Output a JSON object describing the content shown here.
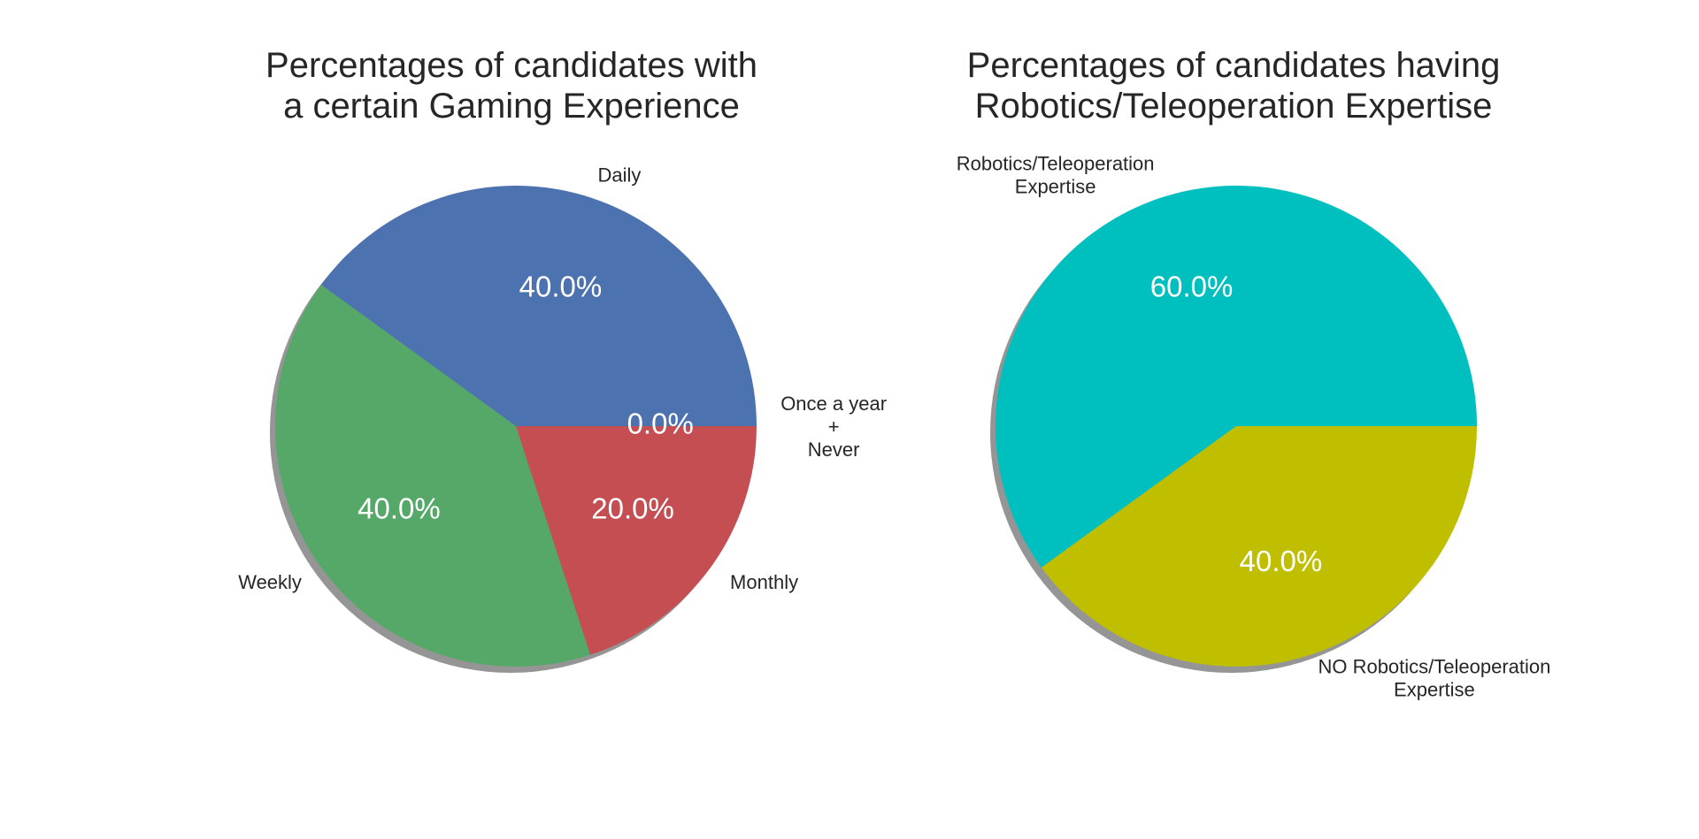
{
  "chart_data": [
    {
      "type": "pie",
      "title_lines": [
        "Percentages of candidates  with",
        "a certain Gaming Experience"
      ],
      "start_angle_deg": 0,
      "shadow": true,
      "slices": [
        {
          "label_lines": [
            "Daily"
          ],
          "value": 40.0,
          "pct_label": "40.0%",
          "color": "#4c72b0"
        },
        {
          "label_lines": [
            "Weekly"
          ],
          "value": 40.0,
          "pct_label": "40.0%",
          "color": "#55a868"
        },
        {
          "label_lines": [
            "Monthly"
          ],
          "value": 20.0,
          "pct_label": "20.0%",
          "color": "#c44e52"
        },
        {
          "label_lines": [
            "Once a year",
            "+",
            "Never"
          ],
          "value": 0.0,
          "pct_label": "0.0%",
          "color": "#8172b2"
        }
      ]
    },
    {
      "type": "pie",
      "title_lines": [
        "Percentages of candidates having",
        "Robotics/Teleoperation Expertise"
      ],
      "start_angle_deg": 0,
      "shadow": true,
      "slices": [
        {
          "label_lines": [
            "Robotics/Teleoperation",
            "Expertise"
          ],
          "value": 60.0,
          "pct_label": "60.0%",
          "color": "#00bfbf"
        },
        {
          "label_lines": [
            "NO Robotics/Teleoperation",
            "Expertise"
          ],
          "value": 40.0,
          "pct_label": "40.0%",
          "color": "#bfbf00"
        }
      ]
    }
  ]
}
